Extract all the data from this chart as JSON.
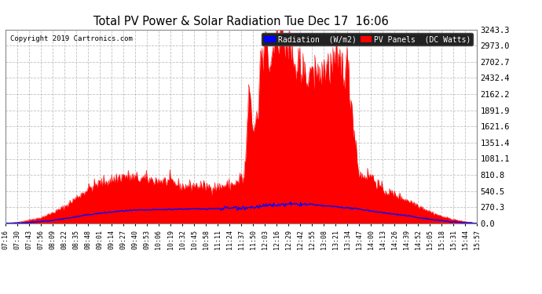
{
  "title": "Total PV Power & Solar Radiation Tue Dec 17  16:06",
  "copyright": "Copyright 2019 Cartronics.com",
  "yticks": [
    0.0,
    270.3,
    540.5,
    810.8,
    1081.1,
    1351.4,
    1621.6,
    1891.9,
    2162.2,
    2432.4,
    2702.7,
    2973.0,
    3243.3
  ],
  "ymax": 3243.3,
  "bg_color": "#ffffff",
  "grid_color": "#bbbbbb",
  "pv_color": "#ff0000",
  "rad_color": "#0000ff",
  "legend_rad_bg": "#0000ff",
  "legend_pv_bg": "#ff0000",
  "legend_rad_text": "Radiation  (W/m2)",
  "legend_pv_text": "PV Panels  (DC Watts)",
  "xtick_labels": [
    "07:16",
    "07:30",
    "07:43",
    "07:56",
    "08:09",
    "08:22",
    "08:35",
    "08:48",
    "09:01",
    "09:14",
    "09:27",
    "09:40",
    "09:53",
    "10:06",
    "10:19",
    "10:32",
    "10:45",
    "10:58",
    "11:11",
    "11:24",
    "11:37",
    "11:50",
    "12:03",
    "12:16",
    "12:29",
    "12:42",
    "12:55",
    "13:08",
    "13:21",
    "13:34",
    "13:47",
    "14:00",
    "14:13",
    "14:26",
    "14:39",
    "14:52",
    "15:05",
    "15:18",
    "15:31",
    "15:44",
    "15:57"
  ]
}
